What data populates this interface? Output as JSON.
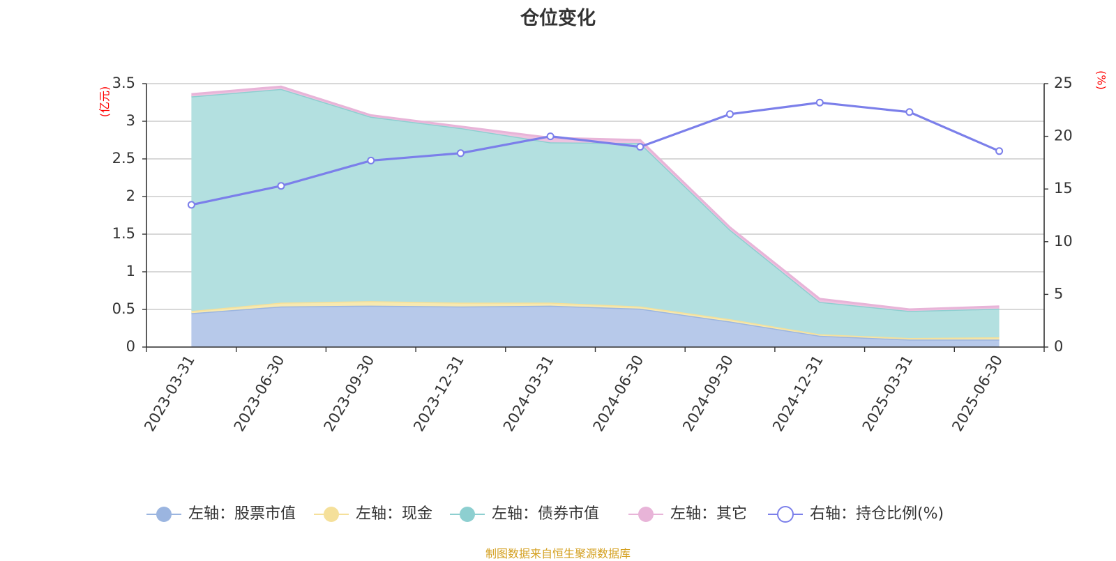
{
  "chart_data": {
    "type": "area",
    "title": "仓位变化",
    "source_note": "制图数据来自恒生聚源数据库",
    "categories": [
      "2023-03-31",
      "2023-06-30",
      "2023-09-30",
      "2023-12-31",
      "2024-03-31",
      "2024-06-30",
      "2024-09-30",
      "2024-12-31",
      "2025-03-31",
      "2025-06-30"
    ],
    "left_axis": {
      "unit": "(亿元)",
      "min": 0,
      "max": 3.5,
      "ticks": [
        "0",
        "0.5",
        "1",
        "1.5",
        "2",
        "2.5",
        "3",
        "3.5"
      ]
    },
    "right_axis": {
      "unit": "(%)",
      "min": 0,
      "max": 25,
      "ticks": [
        "0",
        "5",
        "10",
        "15",
        "20",
        "25"
      ]
    },
    "grid": true,
    "stacked": true,
    "legend_position": "bottom",
    "series": [
      {
        "name": "左轴：股票市值",
        "axis": "left",
        "kind": "area",
        "color": "#9bb5e0",
        "fill": "#b7c9ea",
        "values": [
          0.45,
          0.54,
          0.55,
          0.54,
          0.55,
          0.51,
          0.34,
          0.15,
          0.1,
          0.1
        ]
      },
      {
        "name": "左轴：现金",
        "axis": "left",
        "kind": "area",
        "color": "#f5e09a",
        "fill": "#f7e9b0",
        "values": [
          0.03,
          0.05,
          0.06,
          0.05,
          0.04,
          0.03,
          0.03,
          0.02,
          0.02,
          0.03
        ]
      },
      {
        "name": "左轴：债券市值",
        "axis": "left",
        "kind": "area",
        "color": "#8dcfd0",
        "fill": "#b3e0e0",
        "values": [
          2.85,
          2.84,
          2.45,
          2.32,
          2.13,
          2.17,
          1.19,
          0.43,
          0.36,
          0.38
        ]
      },
      {
        "name": "左轴：其它",
        "axis": "left",
        "kind": "area",
        "color": "#e8b4d8",
        "fill": "#eec3e0",
        "values": [
          0.03,
          0.03,
          0.02,
          0.02,
          0.06,
          0.04,
          0.03,
          0.04,
          0.02,
          0.03
        ]
      },
      {
        "name": "右轴：持仓比例(%)",
        "axis": "right",
        "kind": "line",
        "color": "#7b7fea",
        "values": [
          13.5,
          15.3,
          17.7,
          18.4,
          20.0,
          19.0,
          22.1,
          23.2,
          22.3,
          18.6
        ]
      }
    ]
  }
}
